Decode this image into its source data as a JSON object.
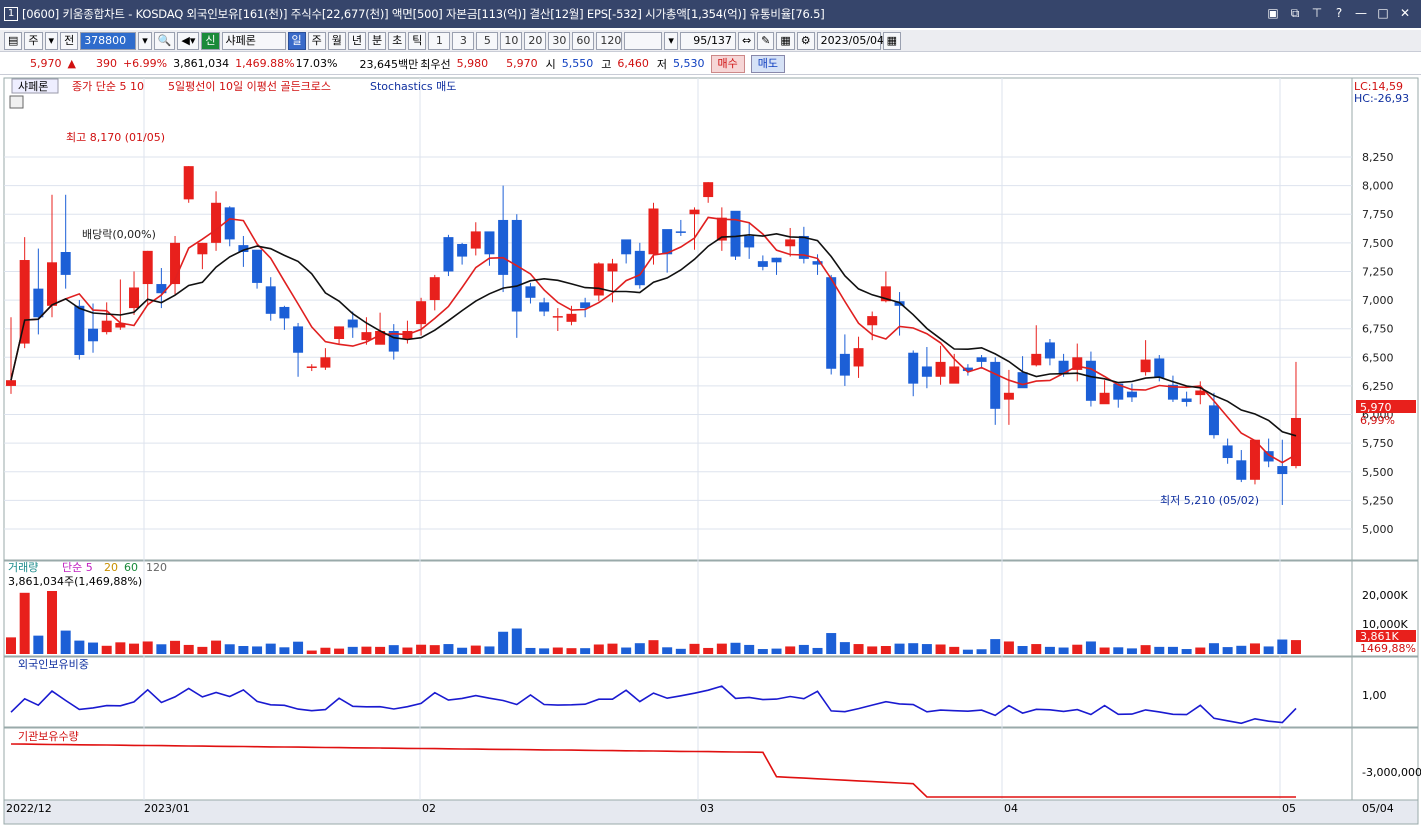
{
  "window": {
    "icon": "1",
    "title": "[0600] 키움종합차트 - KOSDAQ 외국인보유[161(천)] 주식수[22,677(천)] 액면[500] 자본금[113(억)] 결산[12월] EPS[-532] 시가총액[1,354(억)] 유통비율[76.5]",
    "controls": [
      "🗗",
      "🗗",
      "Ŧ",
      "?",
      "—",
      "□",
      "✕"
    ]
  },
  "toolbar": {
    "period_sel": "주",
    "prev": "전",
    "code": "378800",
    "name_tag": "신",
    "name": "샤페론",
    "period_tabs": [
      "일",
      "주",
      "월",
      "년",
      "분",
      "초",
      "틱"
    ],
    "active_period": "일",
    "interval_tabs": [
      "1",
      "3",
      "5",
      "10",
      "20",
      "30",
      "60",
      "120"
    ],
    "count": "95/137",
    "date": "2023/05/04"
  },
  "quote": {
    "price": "5,970",
    "arrow": "▲",
    "change": "390",
    "rate": "+6.99%",
    "volume": "3,861,034",
    "vol_rate": "1,469.88%",
    "turnover": "17.03%",
    "amount": "23,645백만",
    "bid_label": "최우선",
    "ask": "5,980",
    "bid": "5,970",
    "open_label": "시",
    "open": "5,550",
    "high_label": "고",
    "high": "6,460",
    "low_label": "저",
    "low": "5,530",
    "buy": "매수",
    "sell": "매도"
  },
  "legend": {
    "name": "샤페론",
    "ma": "종가 단순 5  10",
    "signal": "5일평선이 10일 이평선 골든크로스",
    "stoch": "Stochastics 매도"
  },
  "annotations": {
    "high": "최고 8,170 (01/05)",
    "low": "최저 5,210 (05/02)",
    "dividend": "배당락(0,00%)",
    "lc": "LC:14,59",
    "hc": "HC:-26,93",
    "last_price": "5,970",
    "last_rate": "6,99%"
  },
  "volume_panel": {
    "title": "거래량",
    "ma_label": "단순 5",
    "ma20": "20",
    "ma60": "60",
    "ma120": "120",
    "value": "3,861,034주(1,469,88%)",
    "ticks": [
      "20,000K",
      "10,000K"
    ],
    "last": "3,861K",
    "last_rate": "1469,88%"
  },
  "foreign_panel": {
    "title": "외국인보유비중",
    "tick": "1,00"
  },
  "inst_panel": {
    "title": "기관보유수량",
    "tick": "-3,000,000"
  },
  "xaxis": [
    "2022/12",
    "2023/01",
    "02",
    "03",
    "04",
    "05",
    "05/04"
  ],
  "price_ticks": [
    "8,250",
    "8,000",
    "7,750",
    "7,500",
    "7,250",
    "7,000",
    "6,750",
    "6,500",
    "6,250",
    "6,000",
    "5,750",
    "5,500",
    "5,250",
    "5,000"
  ],
  "colors": {
    "up": "#e8201c",
    "down": "#1c5fd6",
    "ma5": "#e02020",
    "ma10": "#111111",
    "titlebar": "#36456b"
  },
  "chart_data": {
    "type": "candlestick",
    "dates_range": [
      "2022-12",
      "2023-05-04"
    ],
    "candles": [
      [
        6250,
        6300,
        6850,
        6180
      ],
      [
        6620,
        7350,
        7550,
        6580
      ],
      [
        7100,
        6850,
        7450,
        6700
      ],
      [
        6950,
        7330,
        7920,
        6850
      ],
      [
        7420,
        7220,
        7920,
        7100
      ],
      [
        6950,
        6520,
        7000,
        6480
      ],
      [
        6750,
        6640,
        6970,
        6540
      ],
      [
        6720,
        6820,
        6980,
        6700
      ],
      [
        6760,
        6800,
        7180,
        6740
      ],
      [
        6930,
        7110,
        7250,
        6870
      ],
      [
        7140,
        7430,
        7430,
        6950
      ],
      [
        7140,
        7060,
        7280,
        6930
      ],
      [
        7140,
        7500,
        7560,
        7050
      ],
      [
        7880,
        8170,
        8170,
        7850
      ],
      [
        7400,
        7500,
        7500,
        7270
      ],
      [
        7500,
        7850,
        7950,
        7430
      ],
      [
        7810,
        7530,
        7820,
        7470
      ],
      [
        7480,
        7420,
        7560,
        7290
      ],
      [
        7440,
        7150,
        7350,
        7100
      ],
      [
        7120,
        6880,
        7200,
        6820
      ],
      [
        6940,
        6840,
        6950,
        6740
      ],
      [
        6770,
        6540,
        6800,
        6330
      ],
      [
        6410,
        6420,
        6440,
        6380
      ],
      [
        6410,
        6500,
        6580,
        6390
      ],
      [
        6660,
        6770,
        6770,
        6620
      ],
      [
        6830,
        6760,
        6900,
        6670
      ],
      [
        6650,
        6720,
        6850,
        6610
      ],
      [
        6610,
        6730,
        6890,
        6660
      ],
      [
        6730,
        6550,
        6790,
        6480
      ],
      [
        6660,
        6730,
        6820,
        6620
      ],
      [
        6790,
        6990,
        7020,
        6690
      ],
      [
        7000,
        7200,
        7220,
        6910
      ],
      [
        7550,
        7250,
        7570,
        7210
      ],
      [
        7490,
        7380,
        7500,
        7310
      ],
      [
        7450,
        7600,
        7680,
        7390
      ],
      [
        7600,
        7400,
        7550,
        7300
      ],
      [
        7700,
        7220,
        8000,
        7070
      ],
      [
        7700,
        6900,
        7750,
        6670
      ],
      [
        7120,
        7020,
        7150,
        6970
      ],
      [
        6980,
        6900,
        7020,
        6860
      ],
      [
        6850,
        6860,
        6930,
        6730
      ],
      [
        6810,
        6880,
        6950,
        6780
      ],
      [
        6980,
        6930,
        7020,
        6850
      ],
      [
        7040,
        7320,
        7330,
        6990
      ],
      [
        7250,
        7320,
        7360,
        6980
      ],
      [
        7530,
        7400,
        7520,
        7320
      ],
      [
        7430,
        7130,
        7500,
        7100
      ],
      [
        7400,
        7800,
        7850,
        7310
      ],
      [
        7620,
        7400,
        7450,
        7240
      ],
      [
        7600,
        7590,
        7700,
        7560
      ],
      [
        7750,
        7790,
        7810,
        7440
      ],
      [
        7900,
        8030,
        8030,
        7850
      ],
      [
        7520,
        7720,
        7810,
        7430
      ],
      [
        7780,
        7380,
        7770,
        7350
      ],
      [
        7560,
        7460,
        7680,
        7360
      ],
      [
        7340,
        7290,
        7390,
        7260
      ],
      [
        7370,
        7330,
        7370,
        7220
      ],
      [
        7470,
        7530,
        7630,
        7380
      ],
      [
        7560,
        7360,
        7640,
        7320
      ],
      [
        7340,
        7310,
        7400,
        7220
      ],
      [
        7200,
        6400,
        7220,
        6350
      ],
      [
        6530,
        6340,
        6700,
        6250
      ],
      [
        6420,
        6580,
        6680,
        6320
      ],
      [
        6780,
        6860,
        6900,
        6650
      ],
      [
        6990,
        7120,
        7250,
        6980
      ],
      [
        6990,
        6950,
        7070,
        6690
      ],
      [
        6540,
        6270,
        6560,
        6160
      ],
      [
        6420,
        6330,
        6590,
        6230
      ],
      [
        6330,
        6460,
        6600,
        6260
      ],
      [
        6270,
        6420,
        6530,
        6300
      ],
      [
        6410,
        6380,
        6440,
        6340
      ],
      [
        6500,
        6460,
        6520,
        6400
      ],
      [
        6460,
        6050,
        6500,
        5910
      ],
      [
        6130,
        6190,
        6390,
        5910
      ],
      [
        6370,
        6230,
        6510,
        6240
      ],
      [
        6430,
        6530,
        6780,
        6420
      ],
      [
        6630,
        6490,
        6660,
        6430
      ],
      [
        6470,
        6360,
        6530,
        6330
      ],
      [
        6390,
        6500,
        6620,
        6290
      ],
      [
        6470,
        6120,
        6550,
        6070
      ],
      [
        6090,
        6190,
        6300,
        6100
      ],
      [
        6270,
        6130,
        6270,
        6060
      ],
      [
        6200,
        6150,
        6270,
        6110
      ],
      [
        6370,
        6480,
        6650,
        6340
      ],
      [
        6490,
        6320,
        6520,
        6290
      ],
      [
        6260,
        6130,
        6340,
        6110
      ],
      [
        6140,
        6110,
        6200,
        6070
      ],
      [
        6170,
        6210,
        6290,
        6090
      ],
      [
        6080,
        5820,
        6190,
        5790
      ],
      [
        5730,
        5620,
        5790,
        5570
      ],
      [
        5600,
        5430,
        5690,
        5410
      ],
      [
        5430,
        5780,
        5780,
        5390
      ],
      [
        5680,
        5590,
        5790,
        5540
      ],
      [
        5550,
        5480,
        5780,
        5210
      ],
      [
        5550,
        5970,
        6460,
        5530
      ]
    ],
    "volume_max": 20000,
    "last_volume_k": 3861
  }
}
